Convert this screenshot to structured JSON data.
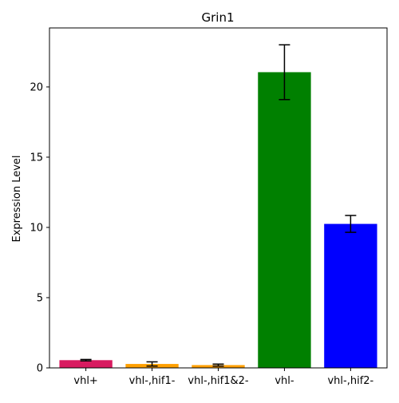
{
  "chart_data": {
    "type": "bar",
    "title": "Grin1",
    "xlabel": "",
    "ylabel": "Expression Level",
    "ylim": [
      0,
      24.2
    ],
    "yticks": [
      0,
      5,
      10,
      15,
      20
    ],
    "grid": false,
    "categories": [
      "vhl+",
      "vhl-,hif1-",
      "vhl-,hif1&2-",
      "vhl-",
      "vhl-,hif2-"
    ],
    "values": [
      0.55,
      0.28,
      0.2,
      21.05,
      10.25
    ],
    "errors": [
      0.05,
      0.15,
      0.07,
      1.95,
      0.6
    ],
    "colors": [
      "#d81b60",
      "#ffa000",
      "#ffa000",
      "#008000",
      "#0000ff"
    ]
  }
}
